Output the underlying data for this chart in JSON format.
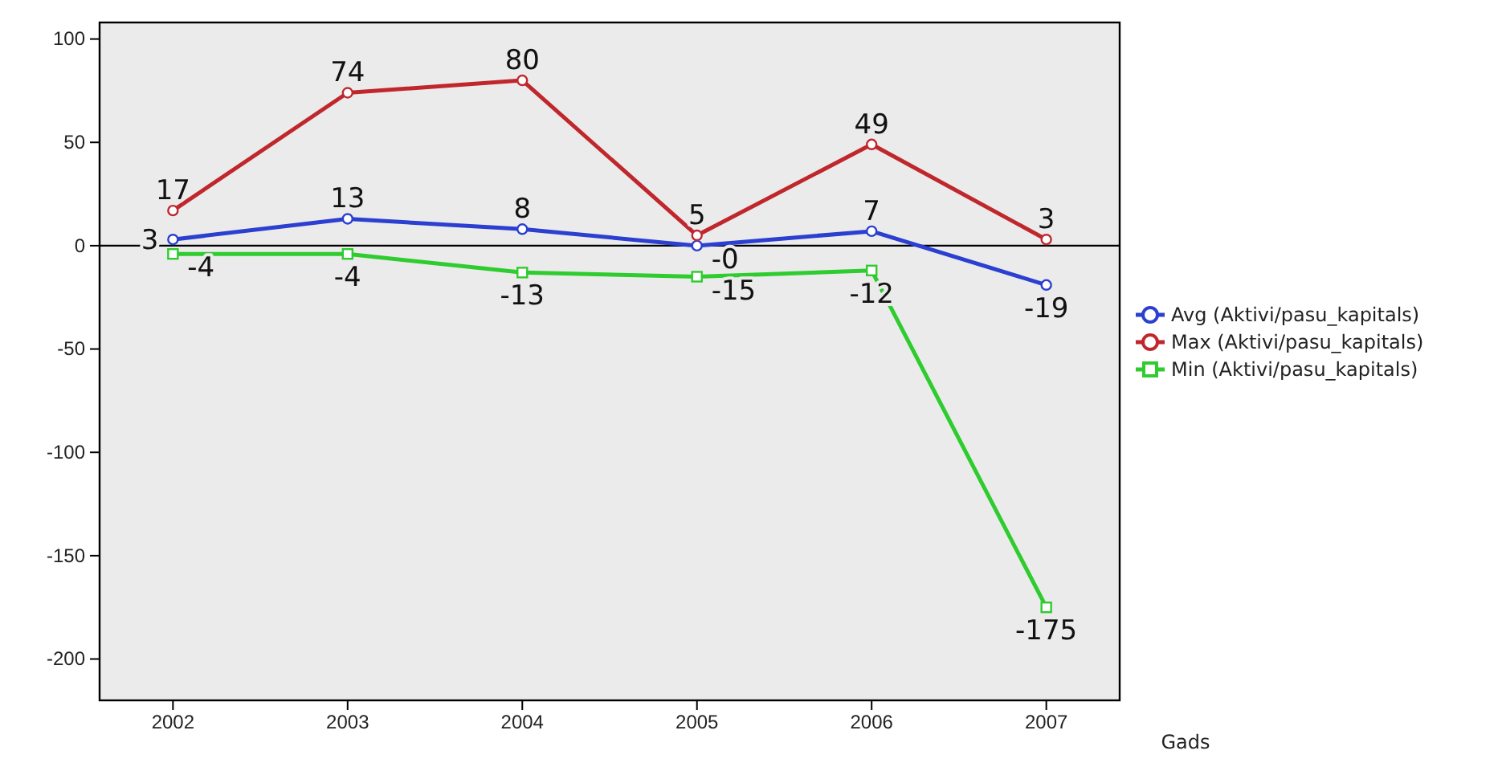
{
  "chart_data": {
    "type": "line",
    "xlabel": "Gads",
    "categories": [
      "2002",
      "2003",
      "2004",
      "2005",
      "2006",
      "2007"
    ],
    "series": [
      {
        "name": "Avg (Aktivi/pasu_kapitals)",
        "color": "#2b3fd0",
        "marker": "circle",
        "values": [
          3,
          13,
          8,
          0,
          7,
          -19
        ],
        "value_labels": [
          "3",
          "13",
          "8",
          "-0",
          "7",
          "-19"
        ]
      },
      {
        "name": "Max (Aktivi/pasu_kapitals)",
        "color": "#c0272d",
        "marker": "circle",
        "values": [
          17,
          74,
          80,
          5,
          49,
          3
        ],
        "value_labels": [
          "17",
          "74",
          "80",
          "5",
          "49",
          "3"
        ]
      },
      {
        "name": "Min (Aktivi/pasu_kapitals)",
        "color": "#2ecc2e",
        "marker": "square",
        "values": [
          -4,
          -4,
          -13,
          -15,
          -12,
          -175
        ],
        "value_labels": [
          "-4",
          "-4",
          "-13",
          "-15",
          "-12",
          "-175"
        ]
      }
    ],
    "ylim": [
      -220,
      108
    ],
    "yticks": [
      -200,
      -150,
      -100,
      -50,
      0,
      50,
      100
    ],
    "ref_lines": [
      {
        "axis": "y",
        "value": 0,
        "color": "#000000"
      }
    ],
    "legend": "right",
    "grid": false
  }
}
